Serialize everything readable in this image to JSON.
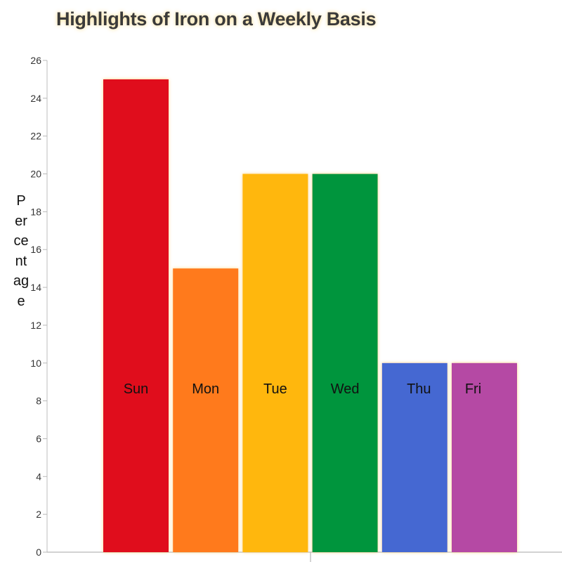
{
  "chart_data": {
    "type": "bar",
    "title": "Highlights of Iron on a Weekly Basis",
    "xlabel": "",
    "ylabel": "Percentage",
    "categories": [
      "Sun",
      "Mon",
      "Tue",
      "Wed",
      "Thu",
      "Fri"
    ],
    "values": [
      25,
      15,
      20,
      20,
      10,
      10
    ],
    "colors": [
      "#e0101e",
      "#ff7a1a",
      "#ffb70b",
      "#00953c",
      "#4468d2",
      "#b549a4"
    ],
    "ylim": [
      0,
      26
    ],
    "yticks": [
      0,
      2,
      4,
      6,
      8,
      10,
      12,
      14,
      16,
      18,
      20,
      22,
      24,
      26
    ],
    "grid": false,
    "legend": "none",
    "label_value": 8.7
  }
}
